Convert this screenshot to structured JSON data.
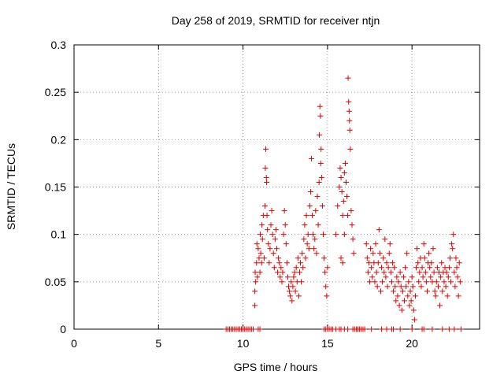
{
  "chart_data": {
    "type": "scatter",
    "title": "Day 258 of 2019, SRMTID for receiver ntjn",
    "xlabel": "GPS time / hours",
    "ylabel": "SRMTID / TECUs",
    "xlim": [
      0,
      24
    ],
    "ylim": [
      0,
      0.3
    ],
    "xticks": [
      0,
      5,
      10,
      15,
      20
    ],
    "xtick_labels": [
      "0",
      "5",
      "10",
      "15",
      "20"
    ],
    "yticks": [
      0,
      0.05,
      0.1,
      0.15,
      0.2,
      0.25,
      0.3
    ],
    "ytick_labels": [
      "0",
      "0.05",
      "0.1",
      "0.15",
      "0.2",
      "0.25",
      "0.3"
    ],
    "grid": true,
    "marker": "plus",
    "color": "#e00000",
    "series": [
      {
        "name": "",
        "points": [
          [
            9.0,
            0
          ],
          [
            9.1,
            0
          ],
          [
            9.2,
            0
          ],
          [
            9.3,
            0
          ],
          [
            9.4,
            0
          ],
          [
            9.5,
            0
          ],
          [
            9.6,
            0
          ],
          [
            9.7,
            0
          ],
          [
            9.8,
            0
          ],
          [
            9.9,
            0
          ],
          [
            10.0,
            0
          ],
          [
            10.1,
            0
          ],
          [
            10.2,
            0
          ],
          [
            10.3,
            0
          ],
          [
            10.4,
            0
          ],
          [
            10.5,
            0
          ],
          [
            10.6,
            0
          ],
          [
            10.9,
            0
          ],
          [
            11.0,
            0
          ],
          [
            14.8,
            0
          ],
          [
            14.9,
            0
          ],
          [
            15.0,
            0
          ],
          [
            15.1,
            0
          ],
          [
            15.2,
            0
          ],
          [
            15.3,
            0
          ],
          [
            15.5,
            0
          ],
          [
            15.7,
            0
          ],
          [
            15.8,
            0
          ],
          [
            16.0,
            0
          ],
          [
            16.2,
            0
          ],
          [
            16.5,
            0
          ],
          [
            16.6,
            0
          ],
          [
            16.7,
            0
          ],
          [
            16.8,
            0
          ],
          [
            16.9,
            0
          ],
          [
            17.0,
            0
          ],
          [
            17.1,
            0
          ],
          [
            17.2,
            0
          ],
          [
            17.6,
            0
          ],
          [
            18.2,
            0
          ],
          [
            18.5,
            0
          ],
          [
            18.8,
            0
          ],
          [
            18.9,
            0
          ],
          [
            19.3,
            0
          ],
          [
            20.0,
            0
          ],
          [
            20.6,
            0
          ],
          [
            20.7,
            0
          ],
          [
            21.2,
            0
          ],
          [
            21.8,
            0
          ],
          [
            22.2,
            0
          ],
          [
            22.5,
            0
          ],
          [
            22.9,
            0
          ],
          [
            10.7,
            0.025
          ],
          [
            10.7,
            0.04
          ],
          [
            10.72,
            0.06
          ],
          [
            10.75,
            0.05
          ],
          [
            10.8,
            0.07
          ],
          [
            10.82,
            0.09
          ],
          [
            10.85,
            0.055
          ],
          [
            10.9,
            0.085
          ],
          [
            10.95,
            0.075
          ],
          [
            11.0,
            0.06
          ],
          [
            11.02,
            0.1
          ],
          [
            11.05,
            0.08
          ],
          [
            11.1,
            0.07
          ],
          [
            11.12,
            0.11
          ],
          [
            11.15,
            0.095
          ],
          [
            11.2,
            0.12
          ],
          [
            11.25,
            0.075
          ],
          [
            11.3,
            0.13
          ],
          [
            11.32,
            0.17
          ],
          [
            11.35,
            0.19
          ],
          [
            11.38,
            0.16
          ],
          [
            11.4,
            0.155
          ],
          [
            11.42,
            0.12
          ],
          [
            11.45,
            0.105
          ],
          [
            11.5,
            0.09
          ],
          [
            11.55,
            0.07
          ],
          [
            11.6,
            0.085
          ],
          [
            11.65,
            0.11
          ],
          [
            11.7,
            0.125
          ],
          [
            11.75,
            0.1
          ],
          [
            11.8,
            0.08
          ],
          [
            11.85,
            0.065
          ],
          [
            11.9,
            0.095
          ],
          [
            11.95,
            0.105
          ],
          [
            12.0,
            0.085
          ],
          [
            12.05,
            0.06
          ],
          [
            12.1,
            0.075
          ],
          [
            12.15,
            0.07
          ],
          [
            12.2,
            0.055
          ],
          [
            12.25,
            0.065
          ],
          [
            12.3,
            0.05
          ],
          [
            12.35,
            0.06
          ],
          [
            12.4,
            0.1
          ],
          [
            12.45,
            0.125
          ],
          [
            12.5,
            0.11
          ],
          [
            12.55,
            0.09
          ],
          [
            12.6,
            0.07
          ],
          [
            12.65,
            0.055
          ],
          [
            12.7,
            0.045
          ],
          [
            12.75,
            0.04
          ],
          [
            12.8,
            0.035
          ],
          [
            12.85,
            0.05
          ],
          [
            12.9,
            0.03
          ],
          [
            12.95,
            0.045
          ],
          [
            13.0,
            0.055
          ],
          [
            13.05,
            0.06
          ],
          [
            13.1,
            0.04
          ],
          [
            13.15,
            0.065
          ],
          [
            13.2,
            0.05
          ],
          [
            13.25,
            0.075
          ],
          [
            13.3,
            0.035
          ],
          [
            13.35,
            0.06
          ],
          [
            13.4,
            0.07
          ],
          [
            13.45,
            0.05
          ],
          [
            13.5,
            0.08
          ],
          [
            13.55,
            0.065
          ],
          [
            13.6,
            0.095
          ],
          [
            13.65,
            0.11
          ],
          [
            13.7,
            0.075
          ],
          [
            13.75,
            0.12
          ],
          [
            13.8,
            0.09
          ],
          [
            13.85,
            0.1
          ],
          [
            13.9,
            0.085
          ],
          [
            13.95,
            0.13
          ],
          [
            14.0,
            0.145
          ],
          [
            14.05,
            0.18
          ],
          [
            14.1,
            0.12
          ],
          [
            14.15,
            0.1
          ],
          [
            14.2,
            0.085
          ],
          [
            14.25,
            0.095
          ],
          [
            14.3,
            0.125
          ],
          [
            14.35,
            0.08
          ],
          [
            14.4,
            0.14
          ],
          [
            14.45,
            0.11
          ],
          [
            14.5,
            0.155
          ],
          [
            14.52,
            0.205
          ],
          [
            14.55,
            0.235
          ],
          [
            14.58,
            0.225
          ],
          [
            14.6,
            0.175
          ],
          [
            14.62,
            0.19
          ],
          [
            14.65,
            0.16
          ],
          [
            14.7,
            0.13
          ],
          [
            14.75,
            0.1
          ],
          [
            14.8,
            0.075
          ],
          [
            14.85,
            0.06
          ],
          [
            14.9,
            0.045
          ],
          [
            14.95,
            0.035
          ],
          [
            15.0,
            0.065
          ],
          [
            15.5,
            0.1
          ],
          [
            15.6,
            0.13
          ],
          [
            15.7,
            0.15
          ],
          [
            15.75,
            0.17
          ],
          [
            15.8,
            0.16
          ],
          [
            15.85,
            0.145
          ],
          [
            15.9,
            0.12
          ],
          [
            15.95,
            0.135
          ],
          [
            16.0,
            0.165
          ],
          [
            16.05,
            0.175
          ],
          [
            16.1,
            0.155
          ],
          [
            16.15,
            0.14
          ],
          [
            16.2,
            0.12
          ],
          [
            16.22,
            0.265
          ],
          [
            16.25,
            0.24
          ],
          [
            16.28,
            0.23
          ],
          [
            16.3,
            0.22
          ],
          [
            16.32,
            0.21
          ],
          [
            16.35,
            0.19
          ],
          [
            16.4,
            0.125
          ],
          [
            16.45,
            0.11
          ],
          [
            16.5,
            0.095
          ],
          [
            16.55,
            0.08
          ],
          [
            15.8,
            0.075
          ],
          [
            15.9,
            0.07
          ],
          [
            16.0,
            0.1
          ],
          [
            17.3,
            0.09
          ],
          [
            17.35,
            0.075
          ],
          [
            17.4,
            0.06
          ],
          [
            17.45,
            0.07
          ],
          [
            17.5,
            0.05
          ],
          [
            17.55,
            0.085
          ],
          [
            17.6,
            0.065
          ],
          [
            17.65,
            0.055
          ],
          [
            17.7,
            0.08
          ],
          [
            17.75,
            0.07
          ],
          [
            17.8,
            0.05
          ],
          [
            17.85,
            0.09
          ],
          [
            17.9,
            0.06
          ],
          [
            17.95,
            0.045
          ],
          [
            18.0,
            0.07
          ],
          [
            18.05,
            0.105
          ],
          [
            18.1,
            0.08
          ],
          [
            18.15,
            0.04
          ],
          [
            18.2,
            0.065
          ],
          [
            18.25,
            0.05
          ],
          [
            18.3,
            0.075
          ],
          [
            18.35,
            0.06
          ],
          [
            18.4,
            0.095
          ],
          [
            18.45,
            0.055
          ],
          [
            18.5,
            0.07
          ],
          [
            18.55,
            0.045
          ],
          [
            18.6,
            0.065
          ],
          [
            18.65,
            0.08
          ],
          [
            18.7,
            0.09
          ],
          [
            18.75,
            0.06
          ],
          [
            18.8,
            0.05
          ],
          [
            18.85,
            0.07
          ],
          [
            18.9,
            0.04
          ],
          [
            18.95,
            0.065
          ],
          [
            19.0,
            0.045
          ],
          [
            19.05,
            0.03
          ],
          [
            19.1,
            0.055
          ],
          [
            19.15,
            0.035
          ],
          [
            19.2,
            0.05
          ],
          [
            19.25,
            0.025
          ],
          [
            19.3,
            0.06
          ],
          [
            19.35,
            0.045
          ],
          [
            19.4,
            0.02
          ],
          [
            19.45,
            0.04
          ],
          [
            19.5,
            0.055
          ],
          [
            19.55,
            0.03
          ],
          [
            19.6,
            0.065
          ],
          [
            19.65,
            0.045
          ],
          [
            19.7,
            0.08
          ],
          [
            19.75,
            0.035
          ],
          [
            19.8,
            0.05
          ],
          [
            19.85,
            0.025
          ],
          [
            19.9,
            0.04
          ],
          [
            19.95,
            0.03
          ],
          [
            20.0,
            0.055
          ],
          [
            20.05,
            0.045
          ],
          [
            20.1,
            0.02
          ],
          [
            20.15,
            0.01
          ],
          [
            20.2,
            0.035
          ],
          [
            20.25,
            0.065
          ],
          [
            20.3,
            0.085
          ],
          [
            20.35,
            0.07
          ],
          [
            20.4,
            0.05
          ],
          [
            20.45,
            0.06
          ],
          [
            20.5,
            0.075
          ],
          [
            20.55,
            0.045
          ],
          [
            20.6,
            0.065
          ],
          [
            20.65,
            0.055
          ],
          [
            20.7,
            0.09
          ],
          [
            20.75,
            0.075
          ],
          [
            20.8,
            0.06
          ],
          [
            20.85,
            0.05
          ],
          [
            20.9,
            0.04
          ],
          [
            20.95,
            0.07
          ],
          [
            21.0,
            0.08
          ],
          [
            21.05,
            0.065
          ],
          [
            21.1,
            0.055
          ],
          [
            21.15,
            0.07
          ],
          [
            21.2,
            0.05
          ],
          [
            21.25,
            0.085
          ],
          [
            21.3,
            0.06
          ],
          [
            21.35,
            0.04
          ],
          [
            21.4,
            0.035
          ],
          [
            21.45,
            0.05
          ],
          [
            21.5,
            0.065
          ],
          [
            21.55,
            0.045
          ],
          [
            21.6,
            0.06
          ],
          [
            21.65,
            0.025
          ],
          [
            21.7,
            0.055
          ],
          [
            21.75,
            0.07
          ],
          [
            21.8,
            0.04
          ],
          [
            21.85,
            0.06
          ],
          [
            21.9,
            0.05
          ],
          [
            21.95,
            0.065
          ],
          [
            22.0,
            0.045
          ],
          [
            22.05,
            0.06
          ],
          [
            22.1,
            0.035
          ],
          [
            22.15,
            0.055
          ],
          [
            22.2,
            0.065
          ],
          [
            22.25,
            0.075
          ],
          [
            22.3,
            0.05
          ],
          [
            22.35,
            0.09
          ],
          [
            22.4,
            0.085
          ],
          [
            22.45,
            0.1
          ],
          [
            22.5,
            0.06
          ],
          [
            22.55,
            0.045
          ],
          [
            22.6,
            0.075
          ],
          [
            22.65,
            0.065
          ],
          [
            22.7,
            0.055
          ],
          [
            22.75,
            0.035
          ],
          [
            22.8,
            0.07
          ],
          [
            22.85,
            0.05
          ]
        ]
      }
    ]
  }
}
